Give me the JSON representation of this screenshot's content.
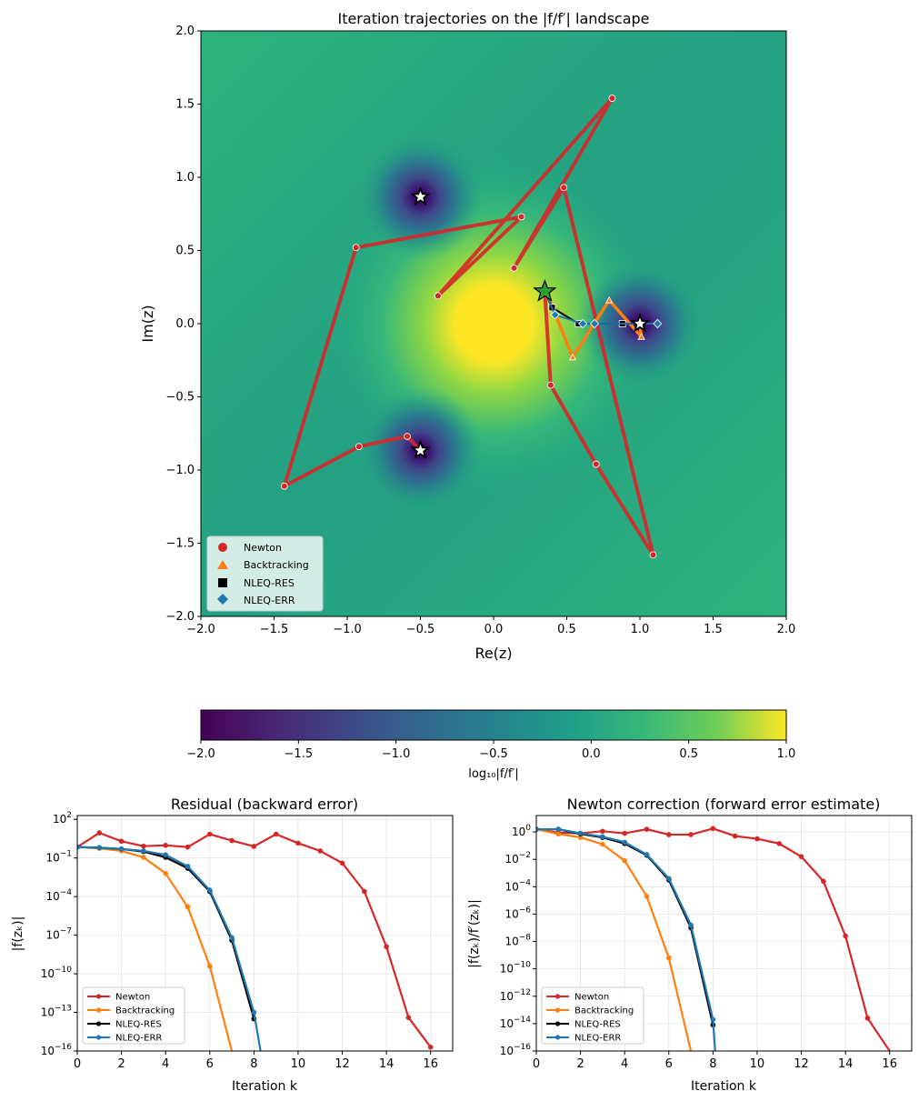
{
  "chart_data": [
    {
      "type": "scatter",
      "title": "Iteration trajectories on the |f/f′| landscape",
      "xlabel": "Re(z)",
      "ylabel": "Im(z)",
      "xlim": [
        -2,
        2
      ],
      "ylim": [
        -2,
        2
      ],
      "xticks": [
        -2.0,
        -1.5,
        -1.0,
        -0.5,
        0.0,
        0.5,
        1.0,
        1.5,
        2.0
      ],
      "yticks": [
        -2.0,
        -1.5,
        -1.0,
        -0.5,
        0.0,
        0.5,
        1.0,
        1.5,
        2.0
      ],
      "xtick_labels": [
        "−2.0",
        "−1.5",
        "−1.0",
        "−0.5",
        "0.0",
        "0.5",
        "1.0",
        "1.5",
        "2.0"
      ],
      "ytick_labels": [
        "−2.0",
        "−1.5",
        "−1.0",
        "−0.5",
        "0.0",
        "0.5",
        "1.0",
        "1.5",
        "2.0"
      ],
      "background": "heatmap of log10|f/f′| (viridis), roots at 1, −0.5±0.866i, pole-like maximum at 0",
      "legend_position": "lower-left",
      "roots": [
        [
          1.0,
          0.0
        ],
        [
          -0.5,
          0.866
        ],
        [
          -0.5,
          -0.866
        ]
      ],
      "start_point": [
        0.35,
        0.22
      ],
      "series": [
        {
          "name": "Newton",
          "color": "#d62728",
          "marker": "circle",
          "points": [
            [
              0.35,
              0.22
            ],
            [
              0.39,
              -0.42
            ],
            [
              0.7,
              -0.96
            ],
            [
              1.09,
              -1.58
            ],
            [
              0.48,
              0.93
            ],
            [
              0.14,
              0.38
            ],
            [
              0.81,
              1.54
            ],
            [
              -0.38,
              0.19
            ],
            [
              0.19,
              0.73
            ],
            [
              -0.94,
              0.52
            ],
            [
              -1.43,
              -1.11
            ],
            [
              -0.92,
              -0.84
            ],
            [
              -0.59,
              -0.77
            ],
            [
              -0.5,
              -0.866
            ]
          ]
        },
        {
          "name": "Backtracking",
          "color": "#ff7f0e",
          "marker": "triangle",
          "points": [
            [
              0.35,
              0.22
            ],
            [
              0.42,
              0.07
            ],
            [
              0.54,
              -0.23
            ],
            [
              0.79,
              0.16
            ],
            [
              1.01,
              -0.09
            ],
            [
              1.0,
              0.0
            ]
          ]
        },
        {
          "name": "NLEQ-RES",
          "color": "#000000",
          "marker": "square",
          "points": [
            [
              0.35,
              0.22
            ],
            [
              0.4,
              0.11
            ],
            [
              0.58,
              0.0
            ],
            [
              0.88,
              0.0
            ],
            [
              1.0,
              0.0
            ]
          ]
        },
        {
          "name": "NLEQ-ERR",
          "color": "#1f77b4",
          "marker": "diamond",
          "points": [
            [
              0.35,
              0.22
            ],
            [
              0.42,
              0.06
            ],
            [
              0.61,
              0.0
            ],
            [
              0.69,
              0.0
            ],
            [
              1.12,
              0.0
            ],
            [
              1.0,
              0.0
            ]
          ]
        }
      ]
    },
    {
      "type": "heatmap",
      "colorbar_label": "log₁₀|f/f′|",
      "range": [
        -2.0,
        1.0
      ],
      "ticks": [
        -2.0,
        -1.5,
        -1.0,
        -0.5,
        0.0,
        0.5,
        1.0
      ],
      "tick_labels": [
        "−2.0",
        "−1.5",
        "−1.0",
        "−0.5",
        "0.0",
        "0.5",
        "1.0"
      ]
    },
    {
      "type": "line",
      "title": "Residual (backward error)",
      "xlabel": "Iteration k",
      "ylabel": "|f(zₖ)|",
      "xlim": [
        0,
        17
      ],
      "ylim": [
        -16,
        2.3
      ],
      "log_y": true,
      "xticks": [
        0,
        2,
        4,
        6,
        8,
        10,
        12,
        14,
        16
      ],
      "yticks": [
        2,
        -1,
        -4,
        -7,
        -10,
        -13,
        -16
      ],
      "grid": true,
      "legend_position": "lower-left",
      "series": [
        {
          "name": "Newton",
          "color": "#d62728",
          "x": [
            0,
            1,
            2,
            3,
            4,
            5,
            6,
            7,
            8,
            9,
            10,
            11,
            12,
            13,
            14,
            15,
            16
          ],
          "y": [
            -0.15,
            0.95,
            0.3,
            -0.08,
            -0.02,
            -0.15,
            0.85,
            0.35,
            -0.1,
            0.85,
            0.15,
            -0.45,
            -1.4,
            -3.6,
            -7.9,
            -13.4,
            -15.7
          ]
        },
        {
          "name": "Backtracking",
          "color": "#ff7f0e",
          "x": [
            0,
            1,
            2,
            3,
            4,
            5,
            6,
            7
          ],
          "y": [
            -0.15,
            -0.25,
            -0.45,
            -0.95,
            -2.2,
            -4.8,
            -9.4,
            -16.0
          ]
        },
        {
          "name": "NLEQ-RES",
          "color": "#000000",
          "x": [
            0,
            1,
            2,
            3,
            4,
            5,
            6,
            7,
            8
          ],
          "y": [
            -0.15,
            -0.2,
            -0.3,
            -0.5,
            -0.95,
            -1.8,
            -3.6,
            -7.4,
            -13.5
          ]
        },
        {
          "name": "NLEQ-ERR",
          "color": "#1f77b4",
          "x": [
            0,
            1,
            2,
            3,
            4,
            5,
            6,
            7,
            8,
            8.3
          ],
          "y": [
            -0.15,
            -0.2,
            -0.3,
            -0.45,
            -0.75,
            -1.65,
            -3.5,
            -7.2,
            -13.0,
            -16.0
          ]
        }
      ]
    },
    {
      "type": "line",
      "title": "Newton correction (forward error estimate)",
      "xlabel": "Iteration k",
      "ylabel": "|f(zₖ)/f′(zₖ)|",
      "xlim": [
        0,
        17
      ],
      "ylim": [
        -16,
        1.2
      ],
      "log_y": true,
      "xticks": [
        0,
        2,
        4,
        6,
        8,
        10,
        12,
        14,
        16
      ],
      "yticks": [
        0,
        -2,
        -4,
        -6,
        -8,
        -10,
        -12,
        -14,
        -16
      ],
      "grid": true,
      "legend_position": "lower-left",
      "series": [
        {
          "name": "Newton",
          "color": "#d62728",
          "x": [
            0,
            1,
            2,
            3,
            4,
            5,
            6,
            7,
            8,
            9,
            10,
            11,
            12,
            13,
            14,
            15,
            16
          ],
          "y": [
            0.2,
            -0.05,
            -0.1,
            0.05,
            -0.1,
            0.2,
            -0.2,
            -0.2,
            0.25,
            -0.3,
            -0.5,
            -0.85,
            -1.8,
            -3.6,
            -7.6,
            -13.6,
            -16.0
          ]
        },
        {
          "name": "Backtracking",
          "color": "#ff7f0e",
          "x": [
            0,
            1,
            2,
            3,
            4,
            5,
            6,
            7
          ],
          "y": [
            0.2,
            -0.15,
            -0.4,
            -0.9,
            -2.1,
            -4.7,
            -9.2,
            -16.0
          ]
        },
        {
          "name": "NLEQ-RES",
          "color": "#000000",
          "x": [
            0,
            1,
            2,
            3,
            4,
            5,
            6,
            7,
            8
          ],
          "y": [
            0.2,
            0.2,
            -0.15,
            -0.4,
            -0.85,
            -1.7,
            -3.5,
            -7.0,
            -14.1
          ]
        },
        {
          "name": "NLEQ-ERR",
          "color": "#1f77b4",
          "x": [
            0,
            1,
            2,
            3,
            4,
            5,
            6,
            7,
            8,
            8.1
          ],
          "y": [
            0.2,
            0.2,
            -0.1,
            -0.35,
            -0.75,
            -1.65,
            -3.4,
            -6.8,
            -13.7,
            -16.0
          ]
        }
      ]
    }
  ]
}
